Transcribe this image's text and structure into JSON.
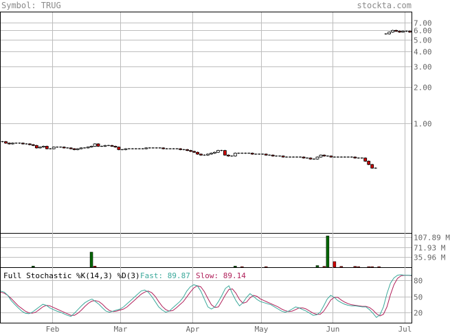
{
  "header": {
    "symbol": "Symbol: TRUG",
    "site": "stockta.com"
  },
  "chart_data": [
    {
      "type": "candlestick",
      "name": "price",
      "y_scale": "log",
      "ylim": [
        0.12,
        8.5
      ],
      "y_ticks": [
        {
          "v": 7.0,
          "label": "7.00"
        },
        {
          "v": 6.0,
          "label": "6.00"
        },
        {
          "v": 5.0,
          "label": "5.00"
        },
        {
          "v": 4.0,
          "label": "4.00"
        },
        {
          "v": 3.0,
          "label": "3.00"
        },
        {
          "v": 2.0,
          "label": "2.00"
        },
        {
          "v": 1.0,
          "label": "1.00"
        }
      ],
      "x_ticks": [
        "Feb",
        "Mar",
        "Apr",
        "May",
        "Jun",
        "Jul"
      ],
      "month_start_index": [
        15,
        35,
        56,
        76,
        97,
        118
      ],
      "n_days": 120,
      "closes": [
        0.7,
        0.68,
        0.67,
        0.68,
        0.68,
        0.68,
        0.67,
        0.67,
        0.66,
        0.65,
        0.62,
        0.63,
        0.64,
        0.61,
        0.61,
        0.63,
        0.63,
        0.63,
        0.62,
        0.62,
        0.61,
        0.6,
        0.61,
        0.62,
        0.62,
        0.63,
        0.64,
        0.67,
        0.64,
        0.64,
        0.65,
        0.65,
        0.64,
        0.63,
        0.6,
        0.6,
        0.61,
        0.61,
        0.61,
        0.61,
        0.61,
        0.61,
        0.62,
        0.62,
        0.62,
        0.62,
        0.62,
        0.61,
        0.61,
        0.61,
        0.61,
        0.61,
        0.6,
        0.6,
        0.59,
        0.58,
        0.57,
        0.55,
        0.54,
        0.54,
        0.55,
        0.56,
        0.57,
        0.59,
        0.59,
        0.54,
        0.53,
        0.53,
        0.56,
        0.56,
        0.56,
        0.56,
        0.56,
        0.55,
        0.55,
        0.55,
        0.55,
        0.54,
        0.54,
        0.53,
        0.53,
        0.53,
        0.52,
        0.52,
        0.52,
        0.52,
        0.52,
        0.52,
        0.51,
        0.51,
        0.5,
        0.5,
        0.52,
        0.54,
        0.53,
        0.53,
        0.52,
        0.52,
        0.52,
        0.52,
        0.52,
        0.52,
        0.52,
        0.51,
        0.51,
        0.51,
        0.48,
        0.45,
        0.42,
        0.42,
        null,
        null,
        5.6,
        5.8,
        6.0,
        5.9,
        5.8,
        5.9,
        5.9,
        5.8
      ],
      "volume_ylim": [
        0,
        120
      ],
      "volume_ticks": [
        {
          "v": 107.89,
          "label": "107.89 M"
        },
        {
          "v": 71.93,
          "label": "71.93 M"
        },
        {
          "v": 35.96,
          "label": "35.96 M"
        }
      ],
      "volume_bars": [
        {
          "i": 9,
          "v": 4,
          "up": true
        },
        {
          "i": 26,
          "v": 54,
          "up": true
        },
        {
          "i": 27,
          "v": 4,
          "up": false
        },
        {
          "i": 68,
          "v": 4,
          "up": true
        },
        {
          "i": 70,
          "v": 2,
          "up": false
        },
        {
          "i": 77,
          "v": 2,
          "up": false
        },
        {
          "i": 92,
          "v": 6,
          "up": true
        },
        {
          "i": 94,
          "v": 3,
          "up": false
        },
        {
          "i": 95,
          "v": 112,
          "up": true
        },
        {
          "i": 97,
          "v": 20,
          "up": false
        },
        {
          "i": 99,
          "v": 3,
          "up": false
        },
        {
          "i": 103,
          "v": 3,
          "up": false
        },
        {
          "i": 104,
          "v": 2,
          "up": false
        },
        {
          "i": 107,
          "v": 2,
          "up": false
        },
        {
          "i": 108,
          "v": 2,
          "up": false
        },
        {
          "i": 110,
          "v": 2,
          "up": false
        }
      ]
    },
    {
      "type": "line",
      "name": "Full Stochastic",
      "label": "Full Stochastic %K(14,3) %D(3)",
      "fast_label": "Fast: 89.87",
      "slow_label": "Slow: 89.14",
      "ylim": [
        0,
        100
      ],
      "y_ticks": [
        {
          "v": 80,
          "label": "80"
        },
        {
          "v": 50,
          "label": "50"
        },
        {
          "v": 20,
          "label": "20"
        }
      ],
      "fast": [
        60,
        58,
        52,
        42,
        35,
        28,
        22,
        18,
        17,
        20,
        25,
        30,
        35,
        33,
        28,
        25,
        22,
        20,
        17,
        14,
        12,
        18,
        25,
        32,
        38,
        42,
        45,
        40,
        35,
        28,
        22,
        20,
        22,
        24,
        26,
        30,
        36,
        42,
        48,
        54,
        60,
        62,
        58,
        50,
        40,
        30,
        24,
        20,
        22,
        28,
        34,
        40,
        48,
        60,
        68,
        72,
        70,
        60,
        45,
        30,
        26,
        30,
        40,
        52,
        65,
        70,
        55,
        42,
        32,
        38,
        48,
        55,
        50,
        44,
        40,
        38,
        36,
        34,
        30,
        26,
        22,
        20,
        22,
        26,
        30,
        28,
        25,
        22,
        18,
        14,
        15,
        20,
        32,
        45,
        52,
        48,
        42,
        38,
        35,
        33,
        32,
        32,
        31,
        30,
        30,
        25,
        18,
        10,
        15,
        30,
        55,
        75,
        85,
        90,
        91,
        90,
        90,
        89.87
      ],
      "slow": [
        58,
        56,
        52,
        46,
        39,
        32,
        27,
        22,
        19,
        18,
        20,
        25,
        30,
        33,
        32,
        29,
        26,
        23,
        20,
        17,
        14,
        14,
        18,
        24,
        31,
        37,
        41,
        42,
        40,
        35,
        28,
        23,
        21,
        22,
        24,
        26,
        30,
        36,
        42,
        48,
        54,
        58,
        60,
        57,
        50,
        40,
        31,
        25,
        22,
        23,
        28,
        34,
        40,
        49,
        58,
        66,
        70,
        68,
        59,
        46,
        34,
        29,
        30,
        41,
        53,
        63,
        64,
        56,
        44,
        37,
        39,
        47,
        52,
        50,
        45,
        42,
        39,
        36,
        33,
        30,
        26,
        23,
        21,
        22,
        25,
        28,
        28,
        26,
        22,
        18,
        16,
        16,
        22,
        32,
        43,
        48,
        48,
        43,
        39,
        36,
        34,
        33,
        32,
        31,
        31,
        29,
        24,
        17,
        13,
        16,
        30,
        53,
        72,
        84,
        89,
        90,
        90,
        89.14
      ]
    }
  ],
  "colors": {
    "up": "#006600",
    "down": "#cc0000",
    "fast": "#3aa89a",
    "slow": "#b0205a",
    "grid": "#bdbdbd",
    "text": "#666666"
  }
}
